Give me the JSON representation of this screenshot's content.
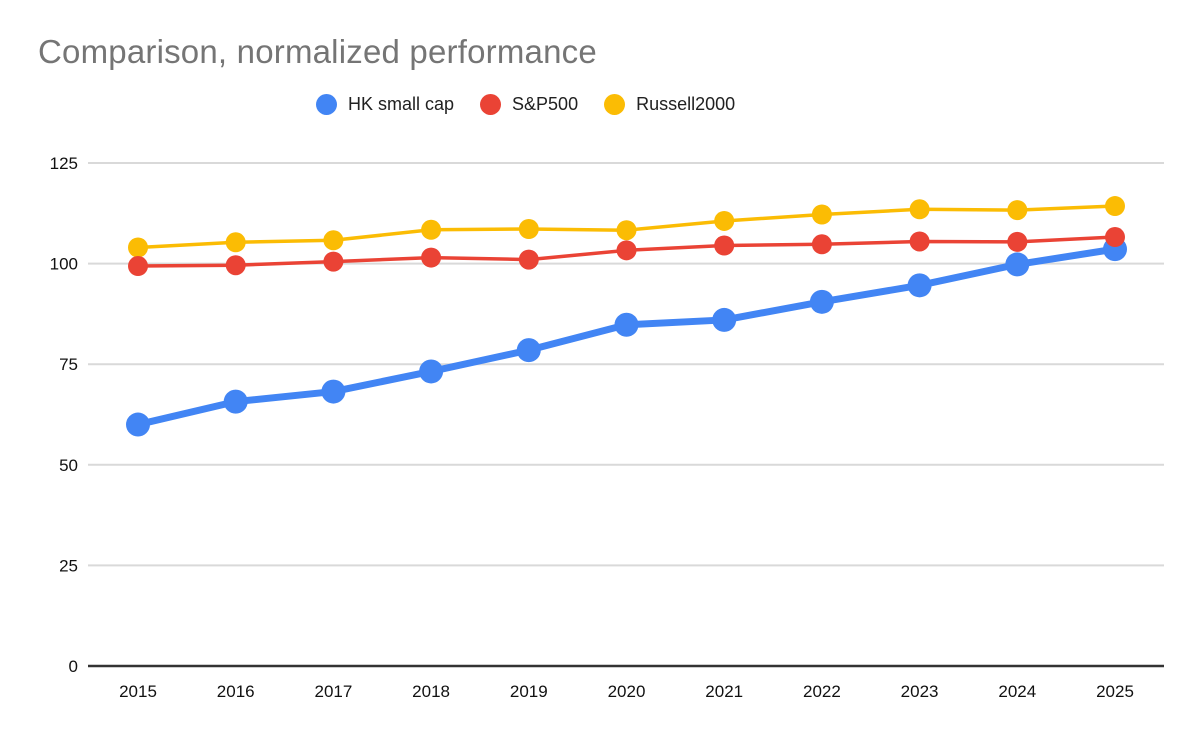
{
  "chart_data": {
    "type": "line",
    "title": "Comparison, normalized performance",
    "legend_position": "top",
    "grid": true,
    "categories": [
      "2015",
      "2016",
      "2017",
      "2018",
      "2019",
      "2020",
      "2021",
      "2022",
      "2023",
      "2024",
      "2025"
    ],
    "series": [
      {
        "name": "HK small cap",
        "color": "#4285F4",
        "line_width": 7,
        "point_radius": 12,
        "values": [
          60.0,
          65.7,
          68.2,
          73.2,
          78.5,
          84.8,
          86.0,
          90.5,
          94.6,
          99.8,
          103.6
        ]
      },
      {
        "name": "S&P500",
        "color": "#EA4335",
        "line_width": 3.5,
        "point_radius": 10,
        "values": [
          99.4,
          99.6,
          100.5,
          101.5,
          101.0,
          103.3,
          104.5,
          104.8,
          105.5,
          105.4,
          106.6
        ]
      },
      {
        "name": "Russell2000",
        "color": "#FBBC04",
        "line_width": 3.5,
        "point_radius": 10,
        "values": [
          104.0,
          105.3,
          105.8,
          108.4,
          108.6,
          108.3,
          110.6,
          112.2,
          113.5,
          113.3,
          114.3
        ]
      }
    ],
    "y_ticks": [
      0,
      25,
      50,
      75,
      100,
      125
    ],
    "ylim": [
      0,
      125
    ],
    "xlabel": "",
    "ylabel": ""
  },
  "style_colors": {
    "title_text": "#757575",
    "legend_text": "#212121",
    "axis_tick_text": "#111111",
    "gridline": "#d9d9d9",
    "zero_axis_line": "#333333",
    "background": "#ffffff"
  }
}
